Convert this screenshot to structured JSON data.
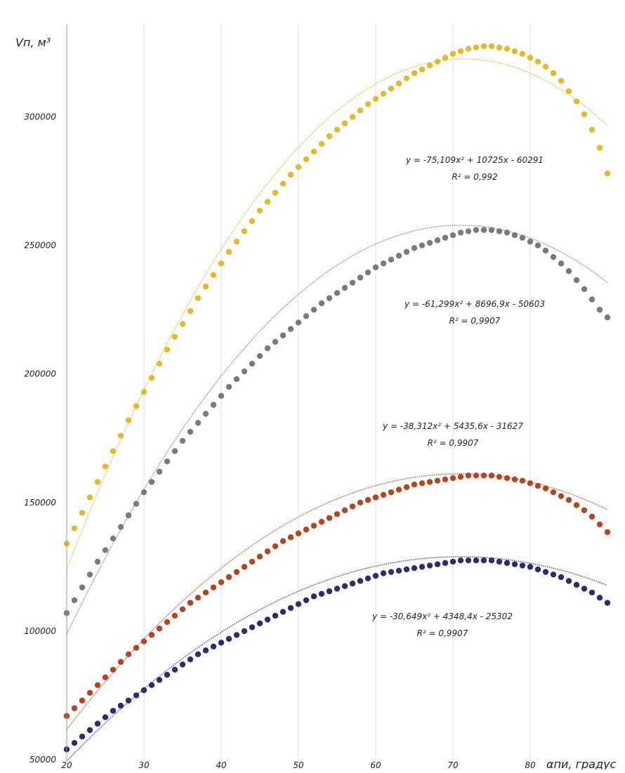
{
  "chart_data": {
    "type": "scatter",
    "ylabel": "Vп, м³",
    "xlabel": "αпи, градус",
    "xlim": [
      20,
      90
    ],
    "ylim": [
      50000,
      340000
    ],
    "x_ticks": [
      "20",
      "30",
      "40",
      "50",
      "60",
      "70",
      "80"
    ],
    "y_ticks": [
      "50000",
      "100000",
      "150000",
      "200000",
      "250000",
      "300000"
    ],
    "grid": "vertical",
    "colors": {
      "yellow": "#e4b92a",
      "gray": "#7a7a7a",
      "red": "#b5441f",
      "navy": "#2b2d6e",
      "axis": "#999999",
      "grid": "#dddddd"
    },
    "series": [
      {
        "color": "#e4b92a",
        "x": [
          20,
          21,
          22,
          23,
          24,
          25,
          26,
          27,
          28,
          29,
          30,
          31,
          32,
          33,
          34,
          35,
          36,
          37,
          38,
          39,
          40,
          41,
          42,
          43,
          44,
          45,
          46,
          47,
          48,
          49,
          50,
          51,
          52,
          53,
          54,
          55,
          56,
          57,
          58,
          59,
          60,
          61,
          62,
          63,
          64,
          65,
          66,
          67,
          68,
          69,
          70,
          71,
          72,
          73,
          74,
          75,
          76,
          77,
          78,
          79,
          80,
          81,
          82,
          83,
          84,
          85,
          86,
          87,
          88,
          89,
          90
        ],
        "y": [
          134000,
          140000,
          146000,
          152000,
          158000,
          164000,
          170000,
          176000,
          182000,
          187500,
          193000,
          198500,
          204000,
          209500,
          214500,
          219500,
          224500,
          229500,
          234000,
          238500,
          243000,
          247500,
          251500,
          255500,
          259500,
          263500,
          267000,
          270500,
          274000,
          277500,
          280500,
          283500,
          286500,
          289500,
          292500,
          295000,
          297500,
          300000,
          302500,
          305000,
          307000,
          309000,
          311000,
          313000,
          315000,
          317000,
          318500,
          320000,
          321500,
          323000,
          324500,
          325500,
          326500,
          327000,
          327500,
          327500,
          327000,
          326500,
          325500,
          324500,
          323000,
          321500,
          319500,
          317000,
          314000,
          310000,
          306000,
          301000,
          295000,
          288000,
          278000
        ],
        "trendline": {
          "a": -75.109,
          "b": 10725,
          "c": -60291
        },
        "equation": "y = -75,109x² + 10725x - 60291",
        "r2": "R² = 0,992"
      },
      {
        "color": "#7a7a7a",
        "x": [
          20,
          21,
          22,
          23,
          24,
          25,
          26,
          27,
          28,
          29,
          30,
          31,
          32,
          33,
          34,
          35,
          36,
          37,
          38,
          39,
          40,
          41,
          42,
          43,
          44,
          45,
          46,
          47,
          48,
          49,
          50,
          51,
          52,
          53,
          54,
          55,
          56,
          57,
          58,
          59,
          60,
          61,
          62,
          63,
          64,
          65,
          66,
          67,
          68,
          69,
          70,
          71,
          72,
          73,
          74,
          75,
          76,
          77,
          78,
          79,
          80,
          81,
          82,
          83,
          84,
          85,
          86,
          87,
          88,
          89,
          90
        ],
        "y": [
          107000,
          112000,
          117000,
          122000,
          127000,
          131500,
          136000,
          140500,
          145000,
          149500,
          154000,
          158000,
          162000,
          166000,
          170000,
          174000,
          177500,
          181000,
          184500,
          188000,
          191500,
          195000,
          198000,
          201000,
          204000,
          207000,
          210000,
          212500,
          215000,
          217500,
          220000,
          222500,
          225000,
          227500,
          229500,
          231500,
          233500,
          235500,
          237500,
          239500,
          241500,
          243000,
          244500,
          246000,
          247500,
          249000,
          250000,
          251000,
          252000,
          253000,
          254000,
          255000,
          255500,
          256000,
          256000,
          256000,
          255500,
          255000,
          254000,
          253000,
          251500,
          250000,
          248000,
          245500,
          243000,
          240000,
          236500,
          233000,
          229000,
          225000,
          222000
        ],
        "trendline": {
          "a": -61.299,
          "b": 8696.9,
          "c": -50603
        },
        "equation": "y = -61,299x² + 8696,9x - 50603",
        "r2": "R² = 0,9907"
      },
      {
        "color": "#b5441f",
        "x": [
          20,
          21,
          22,
          23,
          24,
          25,
          26,
          27,
          28,
          29,
          30,
          31,
          32,
          33,
          34,
          35,
          36,
          37,
          38,
          39,
          40,
          41,
          42,
          43,
          44,
          45,
          46,
          47,
          48,
          49,
          50,
          51,
          52,
          53,
          54,
          55,
          56,
          57,
          58,
          59,
          60,
          61,
          62,
          63,
          64,
          65,
          66,
          67,
          68,
          69,
          70,
          71,
          72,
          73,
          74,
          75,
          76,
          77,
          78,
          79,
          80,
          81,
          82,
          83,
          84,
          85,
          86,
          87,
          88,
          89,
          90
        ],
        "y": [
          67000,
          70000,
          73000,
          76000,
          79000,
          82000,
          85000,
          88000,
          91000,
          93500,
          96000,
          98500,
          101000,
          103500,
          106000,
          108500,
          111000,
          113000,
          115000,
          117000,
          119000,
          121000,
          123000,
          125000,
          127000,
          129000,
          131000,
          133000,
          135000,
          136500,
          138000,
          139500,
          141000,
          142500,
          144000,
          145500,
          147000,
          148500,
          150000,
          151000,
          152000,
          153000,
          154000,
          155000,
          156000,
          157000,
          157500,
          158000,
          158500,
          159000,
          159500,
          160000,
          160500,
          160500,
          160500,
          160500,
          160000,
          159500,
          159000,
          158500,
          157500,
          156500,
          155500,
          154000,
          152500,
          151000,
          149000,
          147000,
          144500,
          141500,
          138500
        ],
        "trendline": {
          "a": -38.312,
          "b": 5435.6,
          "c": -31627
        },
        "equation": "y = -38,312x² + 5435,6x - 31627",
        "r2": "R² = 0,9907"
      },
      {
        "color": "#2b2d6e",
        "x": [
          20,
          21,
          22,
          23,
          24,
          25,
          26,
          27,
          28,
          29,
          30,
          31,
          32,
          33,
          34,
          35,
          36,
          37,
          38,
          39,
          40,
          41,
          42,
          43,
          44,
          45,
          46,
          47,
          48,
          49,
          50,
          51,
          52,
          53,
          54,
          55,
          56,
          57,
          58,
          59,
          60,
          61,
          62,
          63,
          64,
          65,
          66,
          67,
          68,
          69,
          70,
          71,
          72,
          73,
          74,
          75,
          76,
          77,
          78,
          79,
          80,
          81,
          82,
          83,
          84,
          85,
          86,
          87,
          88,
          89,
          90
        ],
        "y": [
          54000,
          56500,
          59000,
          61500,
          64000,
          66500,
          69000,
          71000,
          73000,
          75000,
          77000,
          79000,
          81000,
          83000,
          85000,
          87000,
          89000,
          91000,
          92500,
          94000,
          95500,
          97000,
          98500,
          100000,
          101500,
          103000,
          104500,
          106000,
          107500,
          109000,
          110500,
          112000,
          113500,
          114500,
          115500,
          116500,
          117500,
          118500,
          119500,
          120500,
          121500,
          122500,
          123000,
          123500,
          124000,
          124500,
          125000,
          125500,
          126000,
          126500,
          127000,
          127500,
          127500,
          127500,
          127500,
          127500,
          127000,
          126500,
          126000,
          125500,
          125000,
          124000,
          123000,
          122000,
          121000,
          119500,
          118000,
          116500,
          115000,
          113000,
          111000
        ],
        "trendline": {
          "a": -30.649,
          "b": 4348.4,
          "c": -25302
        },
        "equation": "y = -30,649x² + 4348,4x - 25302",
        "r2": "R² = 0,9907"
      }
    ]
  }
}
